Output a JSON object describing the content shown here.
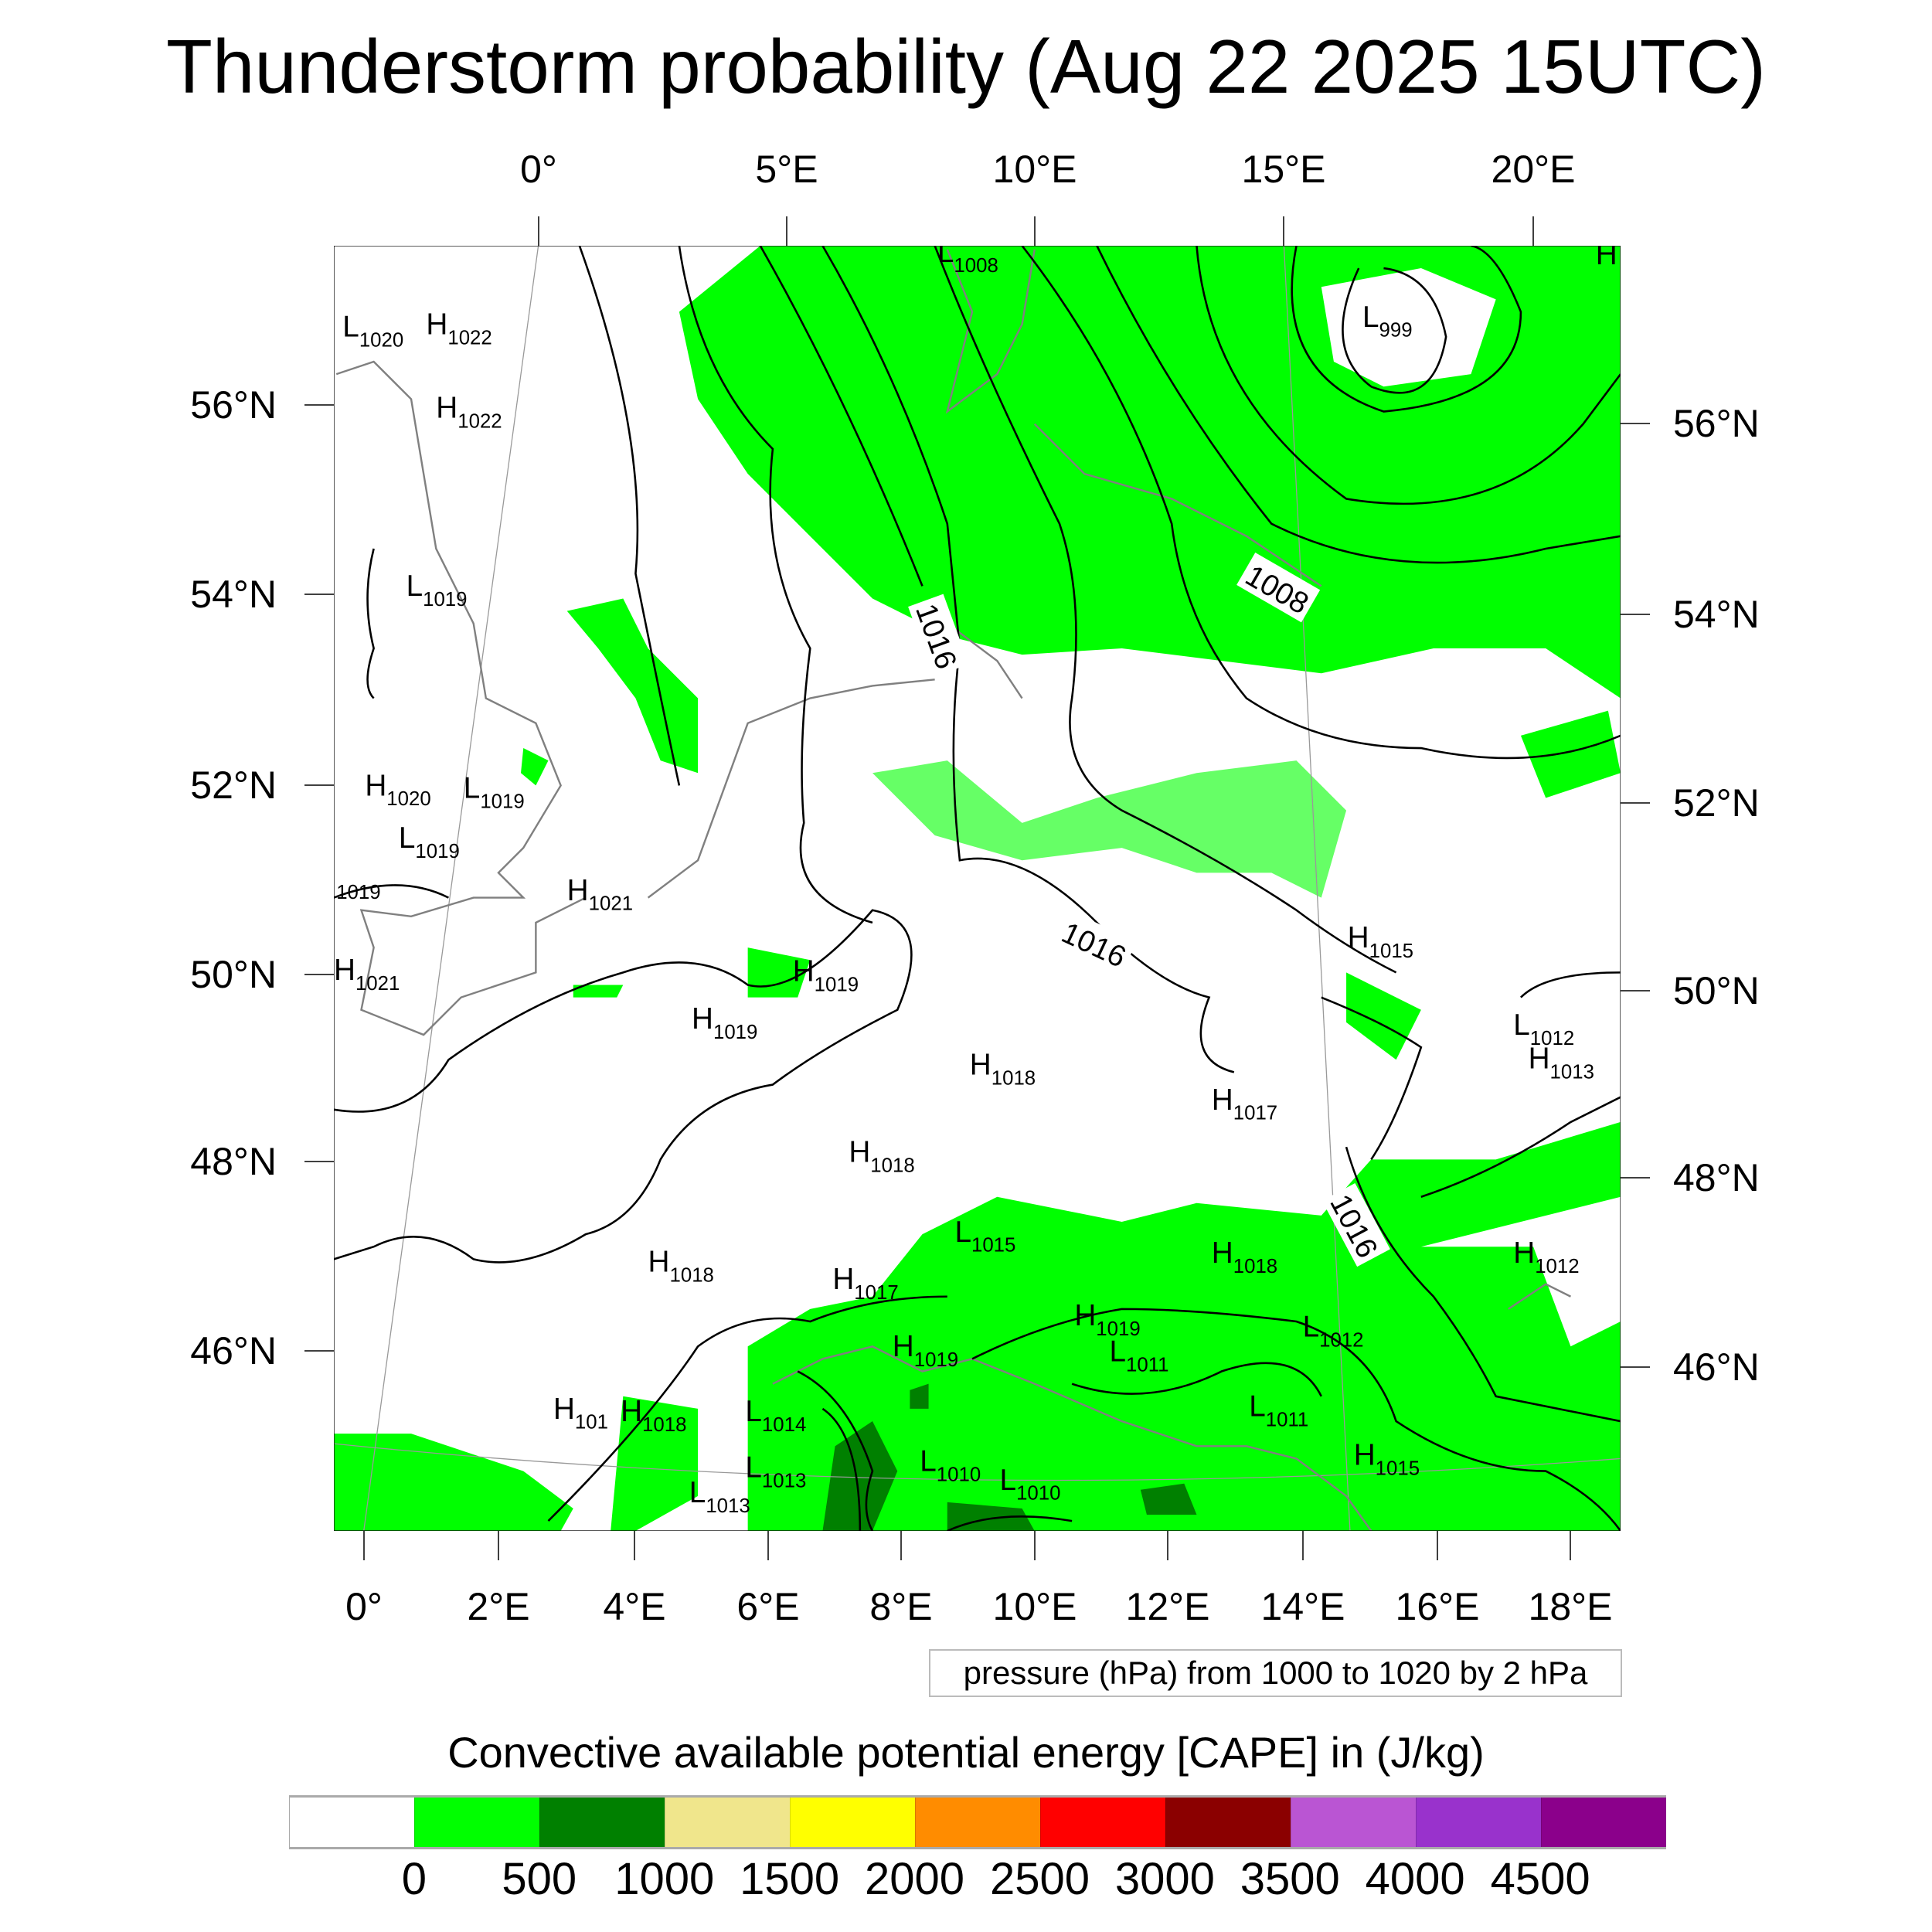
{
  "title": "Thunderstorm probability (Aug 22 2025 15UTC)",
  "top_lon_labels": [
    "0°",
    "5°E",
    "10°E",
    "15°E",
    "20°E"
  ],
  "bottom_lon_labels": [
    "0°",
    "2°E",
    "4°E",
    "6°E",
    "8°E",
    "10°E",
    "12°E",
    "14°E",
    "16°E",
    "18°E"
  ],
  "left_lat_labels": [
    "56°N",
    "54°N",
    "52°N",
    "50°N",
    "48°N",
    "46°N"
  ],
  "right_lat_labels": [
    "56°N",
    "54°N",
    "52°N",
    "50°N",
    "48°N",
    "46°N"
  ],
  "pressure_centers": [
    {
      "t": "L",
      "v": "1020"
    },
    {
      "t": "H",
      "v": "1022"
    },
    {
      "t": "H",
      "v": "1022"
    },
    {
      "t": "L",
      "v": "1019"
    },
    {
      "t": "H",
      "v": "1020"
    },
    {
      "t": "L",
      "v": "1019"
    },
    {
      "t": "L",
      "v": "1019"
    },
    {
      "t": "",
      "v": "1019"
    },
    {
      "t": "H",
      "v": "1021"
    },
    {
      "t": "H",
      "v": "1021"
    },
    {
      "t": "H",
      "v": "1019"
    },
    {
      "t": "H",
      "v": "1019"
    },
    {
      "t": "H",
      "v": "1018"
    },
    {
      "t": "H",
      "v": "1017"
    },
    {
      "t": "H",
      "v": "1018"
    },
    {
      "t": "L",
      "v": "1015"
    },
    {
      "t": "H",
      "v": "1018"
    },
    {
      "t": "H",
      "v": "1017"
    },
    {
      "t": "H",
      "v": "1018"
    },
    {
      "t": "H",
      "v": "1019"
    },
    {
      "t": "L",
      "v": "1011"
    },
    {
      "t": "H",
      "v": "1019"
    },
    {
      "t": "L",
      "v": "1012"
    },
    {
      "t": "L",
      "v": "1014"
    },
    {
      "t": "L",
      "v": "1011"
    },
    {
      "t": "H",
      "v": "101"
    },
    {
      "t": "H",
      "v": "1018"
    },
    {
      "t": "L",
      "v": "1013"
    },
    {
      "t": "L",
      "v": "1013"
    },
    {
      "t": "L",
      "v": "1010"
    },
    {
      "t": "L",
      "v": "1010"
    },
    {
      "t": "H",
      "v": "1015"
    },
    {
      "t": "H",
      "v": "1015"
    },
    {
      "t": "L",
      "v": "1012"
    },
    {
      "t": "H",
      "v": "1013"
    },
    {
      "t": "H",
      "v": "1012"
    },
    {
      "t": "L",
      "v": "1008"
    },
    {
      "t": "L",
      "v": "999"
    },
    {
      "t": "H",
      "v": ""
    }
  ],
  "contour_labels": [
    "1016",
    "1008",
    "1016",
    "1016"
  ],
  "info_box": "pressure (hPa) from 1000 to 1020 by 2 hPa",
  "colorbar": {
    "title": "Convective available potential energy [CAPE] in (J/kg)",
    "colors": [
      "#ffffff",
      "#00ff00",
      "#008000",
      "#f0e68c",
      "#ffff00",
      "#ff8c00",
      "#ff0000",
      "#8b0000",
      "#ba55d3",
      "#9932cc",
      "#8b008b"
    ],
    "labels": [
      "0",
      "500",
      "1000",
      "1500",
      "2000",
      "2500",
      "3000",
      "3500",
      "4000",
      "4500"
    ]
  },
  "colors": {
    "cape_low": "#00ff00",
    "cape_mid": "#008000",
    "coast": "#808080",
    "isobar": "#000000"
  }
}
